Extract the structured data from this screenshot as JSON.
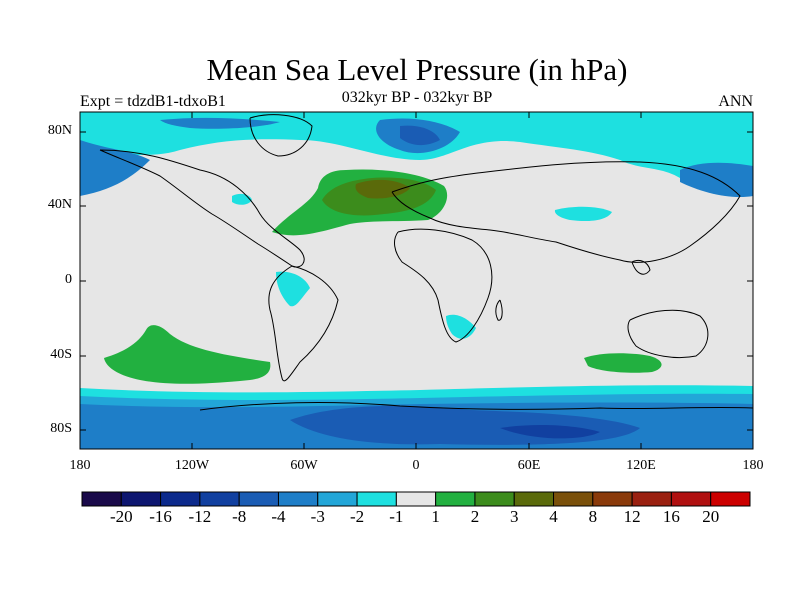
{
  "title": "Mean Sea Level Pressure (in hPa)",
  "subtitle_left": "Expt = tdzdB1-tdxoB1",
  "subtitle_center": "032kyr BP - 032kyr BP",
  "subtitle_right": "ANN",
  "lat_ticks": [
    "80N",
    "40N",
    "0",
    "40S",
    "80S"
  ],
  "lon_ticks": [
    "180",
    "120W",
    "60W",
    "0",
    "60E",
    "120E",
    "180"
  ],
  "colorbar": {
    "colors": [
      "#1a0a4a",
      "#0d1670",
      "#0c2a8c",
      "#1140a0",
      "#1a5cb4",
      "#1e7ec8",
      "#22a6d8",
      "#1ee0e0",
      "#e6e6e6",
      "#22b040",
      "#3c8c1c",
      "#5a6a0a",
      "#7a500a",
      "#8a3a0a",
      "#9a2010",
      "#b01010",
      "#cc0000"
    ],
    "labels": [
      "-20",
      "-16",
      "-12",
      "-8",
      "-4",
      "-3",
      "-2",
      "-1",
      "1",
      "2",
      "3",
      "4",
      "8",
      "12",
      "16",
      "20"
    ]
  },
  "legend_colors": {
    "land_background": "#e6e6e6",
    "negative_1": "#1ee0e0",
    "negative_2": "#22a6d8",
    "negative_3": "#1e7ec8",
    "negative_4": "#1a5cb4",
    "positive_2": "#22b040",
    "positive_3": "#3c8c1c",
    "positive_4": "#5a6a0a"
  }
}
